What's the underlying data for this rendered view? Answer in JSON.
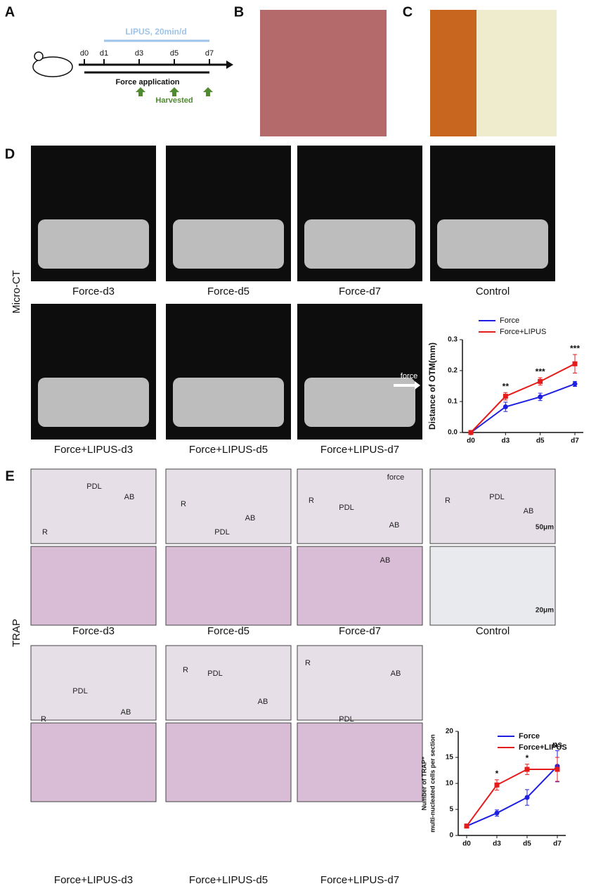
{
  "letters": [
    "A",
    "B",
    "C",
    "D",
    "E"
  ],
  "timeline": {
    "lipus": "LIPUS, 20min/d",
    "days": [
      "d0",
      "d1",
      "d3",
      "d5",
      "d7"
    ],
    "force": "Force application",
    "harvested": "Harvested"
  },
  "microct": {
    "label": "Micro-CT",
    "captions": [
      "Force-d3",
      "Force-d5",
      "Force-d7",
      "Control",
      "Force+LIPUS-d3",
      "Force+LIPUS-d5",
      "Force+LIPUS-d7"
    ],
    "arrow": "force"
  },
  "trap": {
    "label": "TRAP",
    "captions": [
      "Force-d3",
      "Force-d5",
      "Force-d7",
      "Control",
      "Force+LIPUS-d3",
      "Force+LIPUS-d5",
      "Force+LIPUS-d7"
    ],
    "images": [
      {
        "labels": [
          "PDL",
          "AB",
          "R"
        ]
      },
      {
        "labels": [
          "R",
          "PDL",
          "AB"
        ]
      },
      {
        "labels": [
          "R",
          "PDL",
          "AB",
          "AB",
          "force"
        ]
      },
      {
        "labels": [
          "R",
          "PDL",
          "AB"
        ]
      },
      {
        "labels": [
          "R",
          "PDL",
          "AB"
        ]
      },
      {
        "labels": [
          "R",
          "PDL",
          "AB"
        ]
      },
      {
        "labels": [
          "R",
          "PDL",
          "AB"
        ]
      }
    ],
    "scale_bars": [
      "50μm",
      "20μm"
    ]
  },
  "chart_data": [
    {
      "type": "line",
      "y_label": [
        "Distance of OTM(mm)"
      ],
      "categories": [
        "d0",
        "d3",
        "d5",
        "d7"
      ],
      "ylim": [
        0,
        0.3
      ],
      "yticks": [
        {
          "value": 0,
          "label": "0.0"
        },
        {
          "value": 0.1,
          "label": "0.1"
        },
        {
          "value": 0.2,
          "label": "0.2"
        },
        {
          "value": 0.3,
          "label": "0.3"
        }
      ],
      "series": [
        {
          "name": "Force",
          "color": "#1f1fe0",
          "values": [
            0,
            0.083,
            0.115,
            0.157
          ],
          "errors": [
            0,
            0.015,
            0.012,
            0.008
          ]
        },
        {
          "name": "Force+LIPUS",
          "color": "#e51c1c",
          "values": [
            0,
            0.117,
            0.165,
            0.222
          ],
          "errors": [
            0,
            0.012,
            0.012,
            0.03
          ]
        }
      ],
      "annotations": [
        null,
        "**",
        "***",
        "***"
      ]
    },
    {
      "type": "line",
      "y_label": [
        "Number of TRAP⁺",
        "multi-nucleated cells per section"
      ],
      "categories": [
        "d0",
        "d3",
        "d5",
        "d7"
      ],
      "ylim": [
        0,
        20
      ],
      "yticks": [
        0,
        5,
        10,
        15,
        20
      ],
      "series": [
        {
          "name": "Force",
          "color": "#1f1fe0",
          "values": [
            1.8,
            4.3,
            7.3,
            13.3
          ],
          "errors": [
            0.3,
            0.6,
            1.5,
            3
          ]
        },
        {
          "name": "Force+LIPUS",
          "color": "#e51c1c",
          "values": [
            1.8,
            9.7,
            12.7,
            12.7
          ],
          "errors": [
            0.3,
            1,
            1,
            2.3
          ]
        }
      ],
      "annotations": [
        null,
        "*",
        "*",
        "ns"
      ]
    }
  ]
}
